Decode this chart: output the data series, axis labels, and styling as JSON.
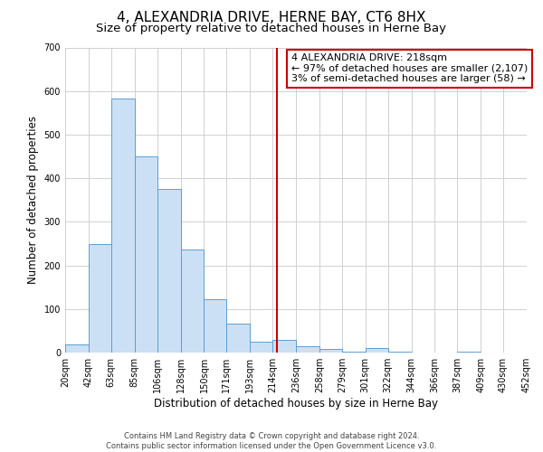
{
  "title": "4, ALEXANDRIA DRIVE, HERNE BAY, CT6 8HX",
  "subtitle": "Size of property relative to detached houses in Herne Bay",
  "xlabel": "Distribution of detached houses by size in Herne Bay",
  "ylabel": "Number of detached properties",
  "footer_line1": "Contains HM Land Registry data © Crown copyright and database right 2024.",
  "footer_line2": "Contains public sector information licensed under the Open Government Licence v3.0.",
  "annotation_title": "4 ALEXANDRIA DRIVE: 218sqm",
  "annotation_line1": "← 97% of detached houses are smaller (2,107)",
  "annotation_line2": "3% of semi-detached houses are larger (58) →",
  "vline_x": 218,
  "bar_bins": [
    20,
    42,
    63,
    85,
    106,
    128,
    150,
    171,
    193,
    214,
    236,
    258,
    279,
    301,
    322,
    344,
    366,
    387,
    409,
    430,
    452
  ],
  "bar_heights": [
    18,
    248,
    582,
    450,
    375,
    237,
    122,
    67,
    25,
    30,
    14,
    9,
    3,
    10,
    3,
    0,
    0,
    3,
    0,
    0,
    0
  ],
  "bar_color": "#cce0f5",
  "bar_edge_color": "#5a9fd4",
  "vline_color": "#cc0000",
  "grid_color": "#d0d0d0",
  "background_color": "#ffffff",
  "ylim": [
    0,
    700
  ],
  "yticks": [
    0,
    100,
    200,
    300,
    400,
    500,
    600,
    700
  ],
  "title_fontsize": 11,
  "subtitle_fontsize": 9.5,
  "axis_label_fontsize": 8.5,
  "tick_fontsize": 7,
  "footer_fontsize": 6,
  "annotation_fontsize": 8,
  "annotation_box_color": "#ffffff",
  "annotation_box_edge_color": "#cc0000"
}
